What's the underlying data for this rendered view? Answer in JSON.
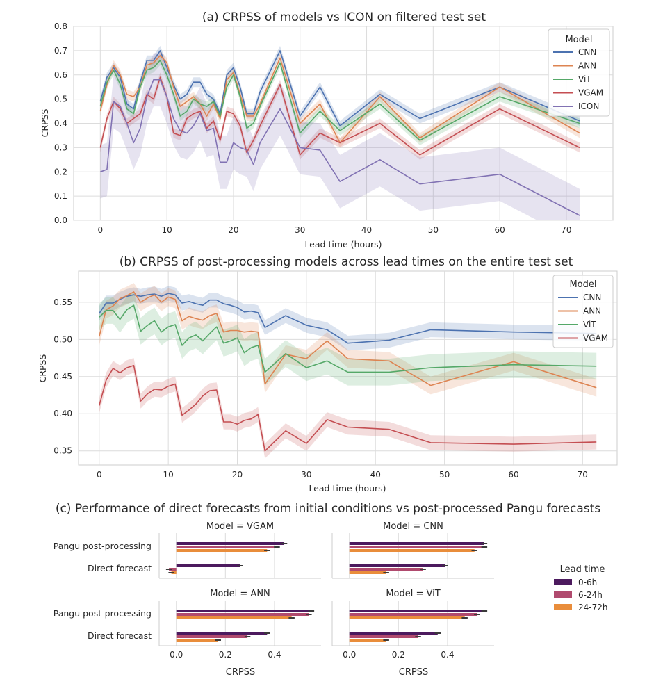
{
  "colors": {
    "CNN": "#4c72b0",
    "ANN": "#dd8452",
    "ViT": "#55a868",
    "VGAM": "#c44e52",
    "ICON": "#8172b3",
    "lt_0_6": "#4c1a5e",
    "lt_6_24": "#b04a6e",
    "lt_24_72": "#e98d3b"
  },
  "chart_data": [
    {
      "id": "a",
      "type": "line",
      "title": "(a) CRPSS of models vs ICON on filtered test set",
      "xlabel": "Lead time (hours)",
      "ylabel": "CRPSS",
      "xlim": [
        -4,
        77
      ],
      "ylim": [
        0.0,
        0.8
      ],
      "xticks": [
        "0",
        "10",
        "20",
        "30",
        "40",
        "50",
        "60",
        "70"
      ],
      "yticks": [
        "0.0",
        "0.1",
        "0.2",
        "0.3",
        "0.4",
        "0.5",
        "0.6",
        "0.7",
        "0.8"
      ],
      "grid": true,
      "legend": {
        "title": "Model",
        "placement": "top-right"
      },
      "x": [
        0,
        1,
        2,
        3,
        4,
        5,
        6,
        7,
        8,
        9,
        10,
        11,
        12,
        13,
        14,
        15,
        16,
        17,
        18,
        19,
        20,
        21,
        22,
        23,
        24,
        27,
        30,
        33,
        36,
        42,
        48,
        60,
        72
      ],
      "series": [
        {
          "name": "CNN",
          "band": 0.02,
          "values": [
            0.49,
            0.59,
            0.63,
            0.59,
            0.48,
            0.46,
            0.57,
            0.66,
            0.66,
            0.7,
            0.63,
            0.56,
            0.5,
            0.52,
            0.57,
            0.57,
            0.52,
            0.5,
            0.44,
            0.6,
            0.63,
            0.55,
            0.44,
            0.44,
            0.53,
            0.7,
            0.43,
            0.55,
            0.39,
            0.52,
            0.42,
            0.55,
            0.41
          ]
        },
        {
          "name": "ANN",
          "band": 0.02,
          "values": [
            0.45,
            0.56,
            0.64,
            0.6,
            0.52,
            0.51,
            0.55,
            0.64,
            0.65,
            0.68,
            0.65,
            0.55,
            0.47,
            0.49,
            0.51,
            0.48,
            0.43,
            0.48,
            0.42,
            0.58,
            0.61,
            0.52,
            0.43,
            0.43,
            0.48,
            0.67,
            0.4,
            0.48,
            0.32,
            0.51,
            0.34,
            0.55,
            0.36
          ]
        },
        {
          "name": "ViT",
          "band": 0.02,
          "values": [
            0.47,
            0.57,
            0.62,
            0.56,
            0.46,
            0.44,
            0.55,
            0.62,
            0.63,
            0.66,
            0.6,
            0.52,
            0.43,
            0.45,
            0.5,
            0.48,
            0.47,
            0.49,
            0.43,
            0.55,
            0.6,
            0.51,
            0.38,
            0.4,
            0.47,
            0.65,
            0.36,
            0.45,
            0.37,
            0.48,
            0.33,
            0.51,
            0.4
          ]
        },
        {
          "name": "VGAM",
          "band": 0.02,
          "values": [
            0.3,
            0.42,
            0.49,
            0.46,
            0.4,
            0.42,
            0.44,
            0.52,
            0.5,
            0.59,
            0.51,
            0.36,
            0.35,
            0.42,
            0.44,
            0.45,
            0.38,
            0.41,
            0.33,
            0.45,
            0.44,
            0.39,
            0.28,
            0.33,
            0.39,
            0.56,
            0.27,
            0.36,
            0.32,
            0.4,
            0.27,
            0.46,
            0.3
          ]
        },
        {
          "name": "ICON",
          "band": 0.11,
          "values": [
            0.2,
            0.21,
            0.49,
            0.47,
            0.4,
            0.32,
            0.38,
            0.51,
            0.58,
            0.58,
            0.51,
            0.42,
            0.37,
            0.36,
            0.39,
            0.44,
            0.37,
            0.38,
            0.24,
            0.24,
            0.32,
            0.3,
            0.29,
            0.23,
            0.32,
            0.46,
            0.3,
            0.29,
            0.16,
            0.25,
            0.15,
            0.19,
            0.02
          ]
        }
      ]
    },
    {
      "id": "b",
      "type": "line",
      "title": "(b) CRPSS of post-processing models across lead times on the entire test set",
      "xlabel": "Lead time (hours)",
      "ylabel": "CRPSS",
      "xlim": [
        -3,
        75
      ],
      "ylim": [
        0.331,
        0.592
      ],
      "xticks": [
        "0",
        "10",
        "20",
        "30",
        "40",
        "50",
        "60",
        "70"
      ],
      "yticks": [
        "0.35",
        "0.40",
        "0.45",
        "0.50",
        "0.55"
      ],
      "grid": true,
      "legend": {
        "title": "Model",
        "placement": "top-right"
      },
      "x": [
        0,
        1,
        2,
        3,
        4,
        5,
        6,
        7,
        8,
        9,
        10,
        11,
        12,
        13,
        14,
        15,
        16,
        17,
        18,
        19,
        20,
        21,
        22,
        23,
        24,
        27,
        30,
        33,
        36,
        42,
        48,
        60,
        72
      ],
      "series": [
        {
          "name": "CNN",
          "band": 0.01,
          "values": [
            0.535,
            0.549,
            0.549,
            0.554,
            0.558,
            0.56,
            0.558,
            0.56,
            0.561,
            0.558,
            0.562,
            0.56,
            0.549,
            0.551,
            0.548,
            0.546,
            0.553,
            0.553,
            0.548,
            0.546,
            0.543,
            0.537,
            0.538,
            0.536,
            0.516,
            0.532,
            0.519,
            0.513,
            0.495,
            0.499,
            0.513,
            0.51,
            0.508
          ]
        },
        {
          "name": "ANN",
          "band": 0.012,
          "values": [
            0.504,
            0.54,
            0.545,
            0.555,
            0.559,
            0.564,
            0.55,
            0.556,
            0.56,
            0.55,
            0.557,
            0.554,
            0.525,
            0.531,
            0.528,
            0.526,
            0.532,
            0.535,
            0.51,
            0.512,
            0.512,
            0.51,
            0.511,
            0.51,
            0.44,
            0.48,
            0.474,
            0.498,
            0.474,
            0.471,
            0.438,
            0.47,
            0.435
          ]
        },
        {
          "name": "ViT",
          "band": 0.018,
          "values": [
            0.53,
            0.539,
            0.539,
            0.527,
            0.54,
            0.546,
            0.511,
            0.519,
            0.525,
            0.51,
            0.517,
            0.52,
            0.492,
            0.502,
            0.506,
            0.498,
            0.508,
            0.517,
            0.495,
            0.498,
            0.502,
            0.482,
            0.489,
            0.492,
            0.456,
            0.481,
            0.462,
            0.471,
            0.456,
            0.456,
            0.462,
            0.466,
            0.464
          ]
        },
        {
          "name": "VGAM",
          "band": 0.01,
          "values": [
            0.411,
            0.445,
            0.461,
            0.455,
            0.462,
            0.465,
            0.417,
            0.427,
            0.433,
            0.432,
            0.437,
            0.44,
            0.398,
            0.405,
            0.413,
            0.424,
            0.431,
            0.432,
            0.389,
            0.389,
            0.386,
            0.391,
            0.393,
            0.399,
            0.35,
            0.377,
            0.36,
            0.392,
            0.382,
            0.379,
            0.361,
            0.359,
            0.362
          ]
        }
      ]
    },
    {
      "id": "c",
      "type": "bar",
      "title": "(c) Performance of direct forecasts from initial conditions vs post-processed Pangu forecasts",
      "xlabel": "CRPSS",
      "xlim": [
        -0.07,
        0.59
      ],
      "xticks": [
        "0.0",
        "0.2",
        "0.4"
      ],
      "categories": [
        "Pangu post-processing",
        "Direct forecast"
      ],
      "legend": {
        "title": "Lead time",
        "placement": "right",
        "entries": [
          "0-6h",
          "6-24h",
          "24-72h"
        ]
      },
      "panels": [
        {
          "title": "Model = VGAM",
          "values": [
            [
              0.44,
              0.41,
              0.37
            ],
            [
              0.26,
              -0.03,
              -0.02
            ]
          ]
        },
        {
          "title": "Model = CNN",
          "values": [
            [
              0.55,
              0.55,
              0.51
            ],
            [
              0.39,
              0.3,
              0.15
            ]
          ]
        },
        {
          "title": "Model = ANN",
          "values": [
            [
              0.55,
              0.54,
              0.47
            ],
            [
              0.37,
              0.29,
              0.17
            ]
          ]
        },
        {
          "title": "Model = ViT",
          "values": [
            [
              0.55,
              0.52,
              0.47
            ],
            [
              0.36,
              0.28,
              0.15
            ]
          ]
        }
      ]
    }
  ]
}
